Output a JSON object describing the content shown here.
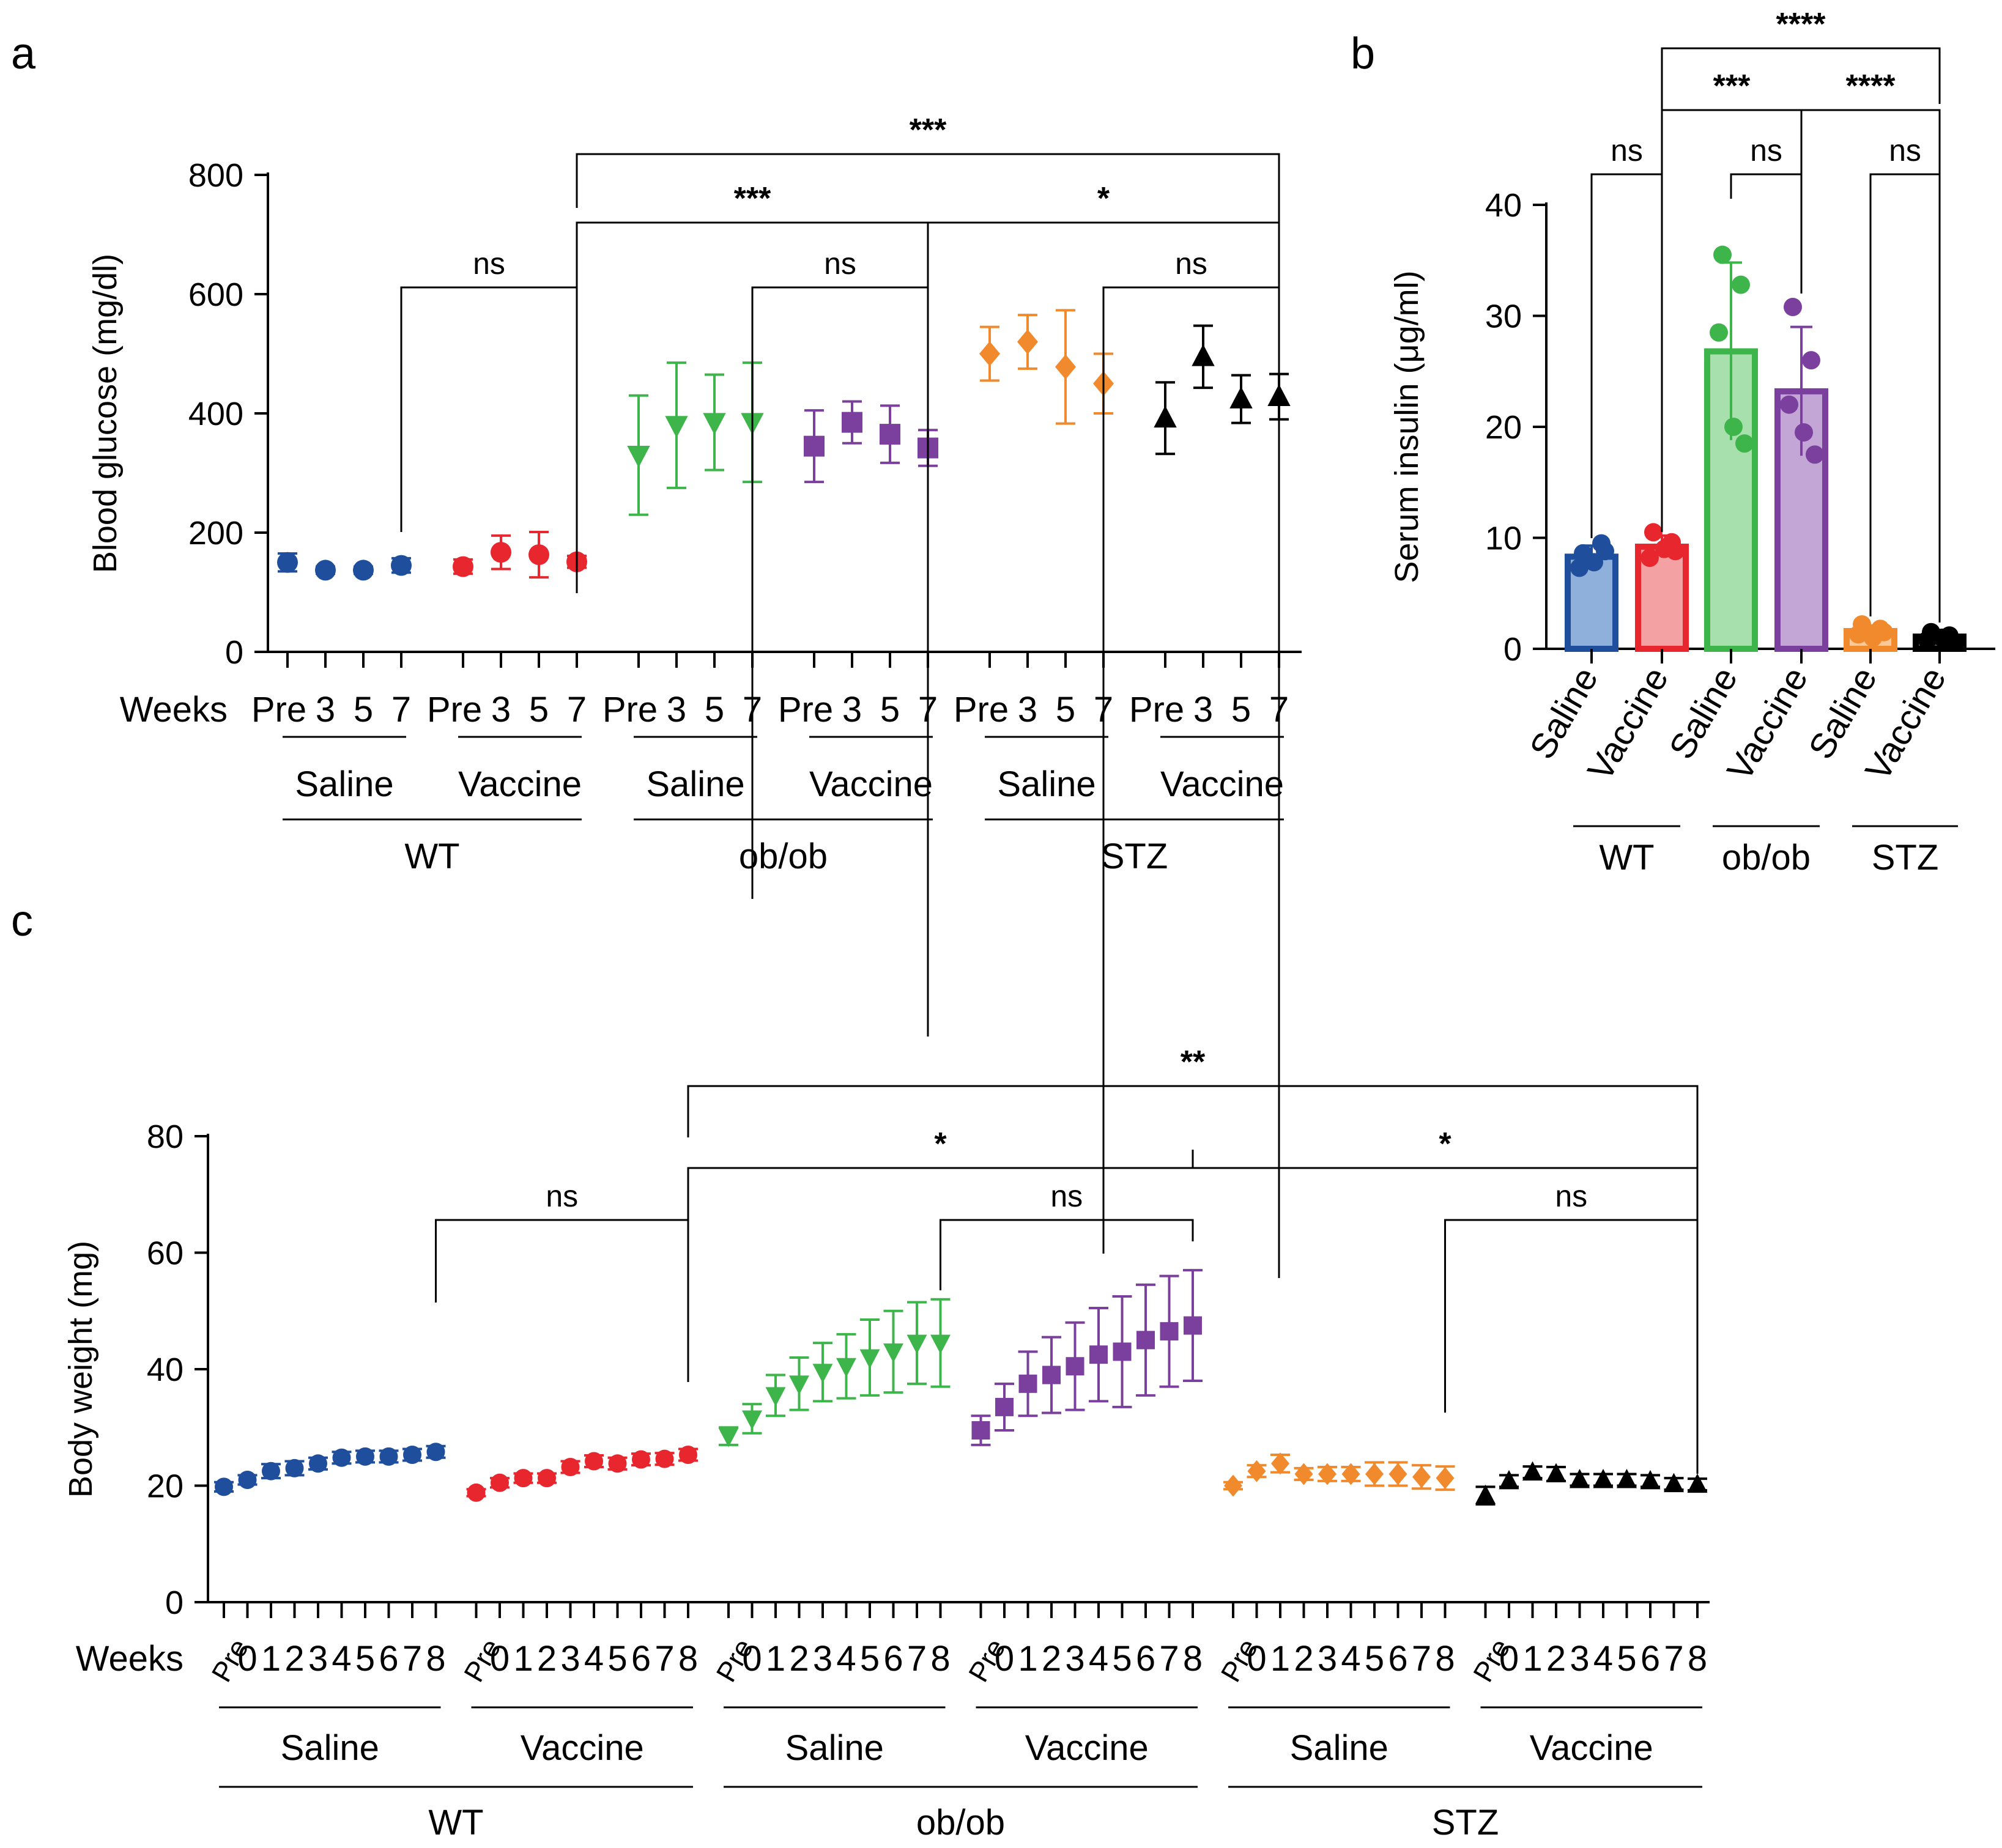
{
  "chart_data": [
    {
      "panel": "a",
      "type": "scatter",
      "ylabel": "Blood glucose (mg/dl)",
      "ylim": [
        0,
        800
      ],
      "yticks": [
        0,
        200,
        400,
        600,
        800
      ],
      "x_title": "Weeks",
      "categories": [
        "Pre",
        "3",
        "5",
        "7"
      ],
      "series": [
        {
          "name": "WT Saline",
          "group": "WT",
          "treatment": "Saline",
          "color": "#1f4e9c",
          "marker": "circle",
          "values": [
            150,
            137,
            137,
            145
          ],
          "errors": [
            15,
            6,
            6,
            12
          ]
        },
        {
          "name": "WT Vaccine",
          "group": "WT",
          "treatment": "Vaccine",
          "color": "#e8262e",
          "marker": "circle",
          "values": [
            143,
            167,
            163,
            151
          ],
          "errors": [
            12,
            28,
            38,
            10
          ]
        },
        {
          "name": "ob/ob Saline",
          "group": "ob/ob",
          "treatment": "Saline",
          "color": "#3db54a",
          "marker": "triangle-down",
          "values": [
            330,
            380,
            385,
            385
          ],
          "errors": [
            100,
            105,
            80,
            100
          ]
        },
        {
          "name": "ob/ob Vaccine",
          "group": "ob/ob",
          "treatment": "Vaccine",
          "color": "#7b3f9e",
          "marker": "square",
          "values": [
            345,
            385,
            365,
            342
          ],
          "errors": [
            60,
            35,
            48,
            30
          ]
        },
        {
          "name": "STZ Saline",
          "group": "STZ",
          "treatment": "Saline",
          "color": "#f08a2c",
          "marker": "diamond",
          "values": [
            500,
            520,
            478,
            450
          ],
          "errors": [
            45,
            45,
            95,
            50
          ]
        },
        {
          "name": "STZ Vaccine",
          "group": "STZ",
          "treatment": "Vaccine",
          "color": "#000000",
          "marker": "triangle-up",
          "values": [
            392,
            495,
            424,
            428
          ],
          "errors": [
            60,
            52,
            40,
            38
          ]
        }
      ],
      "groups": [
        "WT",
        "ob/ob",
        "STZ"
      ],
      "treatments": [
        "Saline",
        "Vaccine"
      ],
      "comparisons": [
        {
          "label": "ns",
          "from": "WT Saline",
          "to": "WT Vaccine"
        },
        {
          "label": "ns",
          "from": "ob/ob Saline",
          "to": "ob/ob Vaccine"
        },
        {
          "label": "ns",
          "from": "STZ Saline",
          "to": "STZ Vaccine"
        },
        {
          "label": "***",
          "from": "WT Vaccine",
          "to": "ob/ob Vaccine"
        },
        {
          "label": "*",
          "from": "ob/ob Vaccine",
          "to": "STZ Vaccine"
        },
        {
          "label": "***",
          "from": "WT Vaccine",
          "to": "STZ Vaccine"
        }
      ]
    },
    {
      "panel": "b",
      "type": "bar",
      "ylabel": "Serum insulin (μg/ml)",
      "ylim": [
        0,
        40
      ],
      "yticks": [
        0,
        10,
        20,
        30,
        40
      ],
      "categories": [
        "Saline",
        "Vaccine",
        "Saline",
        "Vaccine",
        "Saline",
        "Vaccine"
      ],
      "groups": [
        "WT",
        "ob/ob",
        "STZ"
      ],
      "values": [
        8.3,
        9.2,
        26.8,
        23.2,
        1.6,
        1.1
      ],
      "errors": [
        1.0,
        1.0,
        8.0,
        5.8,
        0.5,
        0.4
      ],
      "colors": [
        "#1f4e9c",
        "#e8262e",
        "#3db54a",
        "#7b3f9e",
        "#f08a2c",
        "#000000"
      ],
      "fills": [
        "#8fb0db",
        "#f4a1a3",
        "#a7e0ad",
        "#c3a5d6",
        "#f9c99a",
        "#555555"
      ],
      "points": [
        [
          8.6,
          9.5,
          7.3,
          7.8,
          8.8
        ],
        [
          10.5,
          9.6,
          8.2,
          9.0,
          8.8
        ],
        [
          35.5,
          32.8,
          28.5,
          20.0,
          18.5
        ],
        [
          30.8,
          26.0,
          22.0,
          19.5,
          17.5
        ],
        [
          2.2,
          1.8,
          1.3,
          1.0,
          1.5
        ],
        [
          1.5,
          1.2,
          0.8,
          1.0,
          0.6
        ]
      ],
      "comparisons": [
        {
          "label": "ns",
          "from": 0,
          "to": 1
        },
        {
          "label": "ns",
          "from": 2,
          "to": 3
        },
        {
          "label": "ns",
          "from": 4,
          "to": 5
        },
        {
          "label": "***",
          "from": 1,
          "to": 3
        },
        {
          "label": "****",
          "from": 3,
          "to": 5
        },
        {
          "label": "****",
          "from": 1,
          "to": 5
        }
      ]
    },
    {
      "panel": "c",
      "type": "scatter",
      "ylabel": "Body weight (mg)",
      "ylim": [
        0,
        80
      ],
      "yticks": [
        0,
        20,
        40,
        60,
        80
      ],
      "x_title": "Weeks",
      "categories": [
        "Pre",
        "0",
        "1",
        "2",
        "3",
        "4",
        "5",
        "6",
        "7",
        "8"
      ],
      "series": [
        {
          "name": "WT Saline",
          "group": "WT",
          "treatment": "Saline",
          "color": "#1f4e9c",
          "marker": "circle",
          "values": [
            19.8,
            21.0,
            22.5,
            23.0,
            23.8,
            24.8,
            25.0,
            25.0,
            25.3,
            25.8
          ],
          "errors": [
            0.8,
            0.8,
            1.2,
            1.2,
            1.0,
            1.0,
            1.0,
            1.0,
            1.0,
            1.0
          ]
        },
        {
          "name": "WT Vaccine",
          "group": "WT",
          "treatment": "Vaccine",
          "color": "#e8262e",
          "marker": "circle",
          "values": [
            18.8,
            20.5,
            21.3,
            21.3,
            23.2,
            24.2,
            23.8,
            24.5,
            24.6,
            25.3
          ],
          "errors": [
            0.6,
            0.8,
            0.8,
            0.8,
            1.0,
            1.0,
            1.0,
            1.0,
            1.0,
            1.0
          ]
        },
        {
          "name": "ob/ob Saline",
          "group": "ob/ob",
          "treatment": "Saline",
          "color": "#3db54a",
          "marker": "triangle-down",
          "values": [
            28.5,
            31.5,
            35.5,
            37.5,
            39.5,
            40.5,
            42.0,
            43.0,
            44.5,
            44.5
          ],
          "errors": [
            1.5,
            2.5,
            3.5,
            4.5,
            5.0,
            5.5,
            6.5,
            7.0,
            7.0,
            7.5
          ]
        },
        {
          "name": "ob/ob Vaccine",
          "group": "ob/ob",
          "treatment": "Vaccine",
          "color": "#7b3f9e",
          "marker": "square",
          "values": [
            29.5,
            33.5,
            37.5,
            39.0,
            40.5,
            42.5,
            43.0,
            45.0,
            46.5,
            47.5
          ],
          "errors": [
            2.5,
            4.0,
            5.5,
            6.5,
            7.5,
            8.0,
            9.5,
            9.5,
            9.5,
            9.5
          ]
        },
        {
          "name": "STZ Saline",
          "group": "STZ",
          "treatment": "Saline",
          "color": "#f08a2c",
          "marker": "diamond",
          "values": [
            20.0,
            22.5,
            23.8,
            22.0,
            22.0,
            22.0,
            22.0,
            22.0,
            21.5,
            21.3
          ],
          "errors": [
            0.6,
            1.0,
            1.5,
            1.0,
            1.2,
            1.2,
            2.0,
            2.0,
            2.0,
            2.0
          ]
        },
        {
          "name": "STZ Vaccine",
          "group": "STZ",
          "treatment": "Vaccine",
          "color": "#000000",
          "marker": "triangle-up",
          "values": [
            18.3,
            20.8,
            22.3,
            22.0,
            21.0,
            21.0,
            21.0,
            20.8,
            20.3,
            20.2
          ],
          "errors": [
            1.5,
            1.0,
            1.0,
            1.2,
            1.0,
            1.0,
            1.0,
            1.0,
            1.0,
            1.0
          ]
        }
      ],
      "groups": [
        "WT",
        "ob/ob",
        "STZ"
      ],
      "treatments": [
        "Saline",
        "Vaccine"
      ],
      "comparisons": [
        {
          "label": "ns",
          "from": "WT Saline",
          "to": "WT Vaccine"
        },
        {
          "label": "ns",
          "from": "ob/ob Saline",
          "to": "ob/ob Vaccine"
        },
        {
          "label": "ns",
          "from": "STZ Saline",
          "to": "STZ Vaccine"
        },
        {
          "label": "*",
          "from": "WT Vaccine",
          "to": "ob/ob Vaccine"
        },
        {
          "label": "*",
          "from": "ob/ob Vaccine",
          "to": "STZ Vaccine"
        },
        {
          "label": "**",
          "from": "WT Vaccine",
          "to": "STZ Vaccine"
        }
      ]
    }
  ]
}
